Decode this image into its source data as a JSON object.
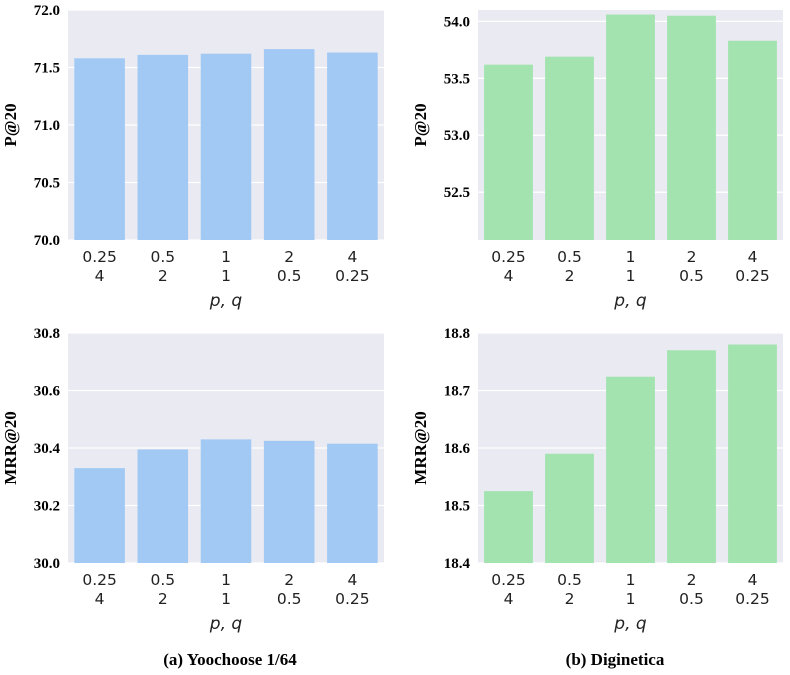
{
  "chart_data": [
    {
      "type": "bar",
      "dataset": "Yoochoose 1/64",
      "ylabel": "P@20",
      "xlabel": "p, q",
      "categories": [
        "0.25\n4",
        "0.5\n2",
        "1\n1",
        "2\n0.5",
        "4\n0.25"
      ],
      "values": [
        71.58,
        71.61,
        71.62,
        71.66,
        71.63
      ],
      "ylim": [
        70.0,
        72.0
      ],
      "yticks": [
        "70.0",
        "70.5",
        "71.0",
        "71.5",
        "72.0"
      ],
      "color": "#a1c9f4",
      "grid": true
    },
    {
      "type": "bar",
      "dataset": "Diginetica",
      "ylabel": "P@20",
      "xlabel": "p, q",
      "categories": [
        "0.25\n4",
        "0.5\n2",
        "1\n1",
        "2\n0.5",
        "4\n0.25"
      ],
      "values": [
        53.62,
        53.69,
        54.06,
        54.05,
        53.83
      ],
      "ylim": [
        52.08,
        54.1
      ],
      "yticks": [
        "52.5",
        "53.0",
        "53.5",
        "54.0"
      ],
      "color": "#a2e3b0",
      "grid": true
    },
    {
      "type": "bar",
      "dataset": "Yoochoose 1/64",
      "ylabel": "MRR@20",
      "xlabel": "p, q",
      "categories": [
        "0.25\n4",
        "0.5\n2",
        "1\n1",
        "2\n0.5",
        "4\n0.25"
      ],
      "values": [
        30.33,
        30.395,
        30.43,
        30.425,
        30.415
      ],
      "ylim": [
        30.0,
        30.8
      ],
      "yticks": [
        "30.0",
        "30.2",
        "30.4",
        "30.6",
        "30.8"
      ],
      "color": "#a1c9f4",
      "grid": true
    },
    {
      "type": "bar",
      "dataset": "Diginetica",
      "ylabel": "MRR@20",
      "xlabel": "p, q",
      "categories": [
        "0.25\n4",
        "0.5\n2",
        "1\n1",
        "2\n0.5",
        "4\n0.25"
      ],
      "values": [
        18.525,
        18.59,
        18.724,
        18.77,
        18.78
      ],
      "ylim": [
        18.4,
        18.8
      ],
      "yticks": [
        "18.4",
        "18.5",
        "18.6",
        "18.7",
        "18.8"
      ],
      "color": "#a2e3b0",
      "grid": true
    }
  ],
  "captions": [
    "(a) Yoochoose 1/64",
    "(b) Diginetica"
  ],
  "style": {
    "plot_background": "#eaeaf2",
    "grid_color": "#ffffff"
  }
}
